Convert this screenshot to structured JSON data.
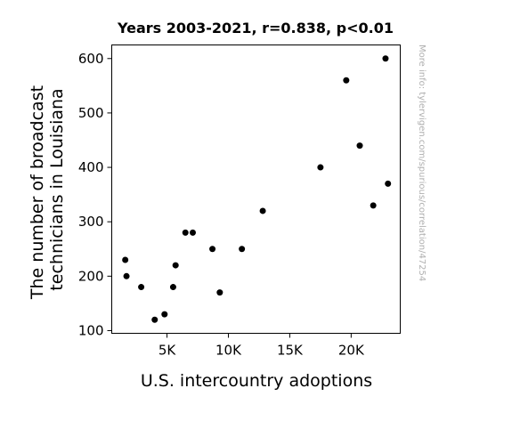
{
  "chart_data": {
    "type": "scatter",
    "title": "Years 2003-2021, r=0.838, p<0.01",
    "xlabel": "U.S. intercountry adoptions",
    "ylabel_lines": [
      "The number of broadcast",
      "technicians in Louisiana"
    ],
    "side_note": "More info: tylervigen.com/spurious/correlation/47254",
    "xlim": [
      500,
      24000
    ],
    "ylim": [
      95,
      625
    ],
    "x_ticks": [
      {
        "value": 5000,
        "label": "5K"
      },
      {
        "value": 10000,
        "label": "10K"
      },
      {
        "value": 15000,
        "label": "15K"
      },
      {
        "value": 20000,
        "label": "20K"
      }
    ],
    "y_ticks": [
      {
        "value": 100,
        "label": "100"
      },
      {
        "value": 200,
        "label": "200"
      },
      {
        "value": 300,
        "label": "300"
      },
      {
        "value": 400,
        "label": "400"
      },
      {
        "value": 500,
        "label": "500"
      },
      {
        "value": 600,
        "label": "600"
      }
    ],
    "points": [
      {
        "x": 22800,
        "y": 600
      },
      {
        "x": 19600,
        "y": 560
      },
      {
        "x": 20700,
        "y": 440
      },
      {
        "x": 17500,
        "y": 400
      },
      {
        "x": 23000,
        "y": 370
      },
      {
        "x": 21800,
        "y": 330
      },
      {
        "x": 12800,
        "y": 320
      },
      {
        "x": 6500,
        "y": 280
      },
      {
        "x": 7100,
        "y": 280
      },
      {
        "x": 8700,
        "y": 250
      },
      {
        "x": 11100,
        "y": 250
      },
      {
        "x": 1600,
        "y": 230
      },
      {
        "x": 5700,
        "y": 220
      },
      {
        "x": 1700,
        "y": 200
      },
      {
        "x": 2900,
        "y": 180
      },
      {
        "x": 5500,
        "y": 180
      },
      {
        "x": 9300,
        "y": 170
      },
      {
        "x": 4800,
        "y": 130
      },
      {
        "x": 4000,
        "y": 120
      }
    ],
    "marker_color": "#000000",
    "grid": false
  }
}
